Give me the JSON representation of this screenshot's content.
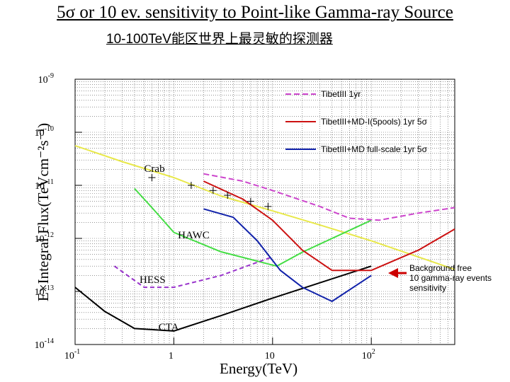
{
  "title": "5σ or 10 ev. sensitivity to Point-like Gamma-ray Source",
  "subtitle": "10-100TeV能区世界上最灵敏的探测器",
  "note": {
    "line1": "Background free",
    "line2": "10 gamma-ray events",
    "line3": "sensitivity",
    "arrow_color": "#cc0000"
  },
  "chart_data": {
    "type": "line",
    "xlabel": "Energy(TeV)",
    "ylabel": "E×Integral Flux(TeVcm⁻²s⁻¹)",
    "x_scale": "log",
    "y_scale": "log",
    "xlim": [
      0.1,
      700
    ],
    "ylim": [
      1e-14,
      1e-09
    ],
    "grid": true,
    "x_ticks": [
      {
        "value": 0.1,
        "base": "10",
        "exp": "-1"
      },
      {
        "value": 1,
        "base": "1",
        "exp": ""
      },
      {
        "value": 10,
        "base": "10",
        "exp": ""
      },
      {
        "value": 100,
        "base": "10",
        "exp": "2"
      }
    ],
    "y_ticks": [
      {
        "value": 1e-09,
        "base": "10",
        "exp": "-9"
      },
      {
        "value": 1e-10,
        "base": "10",
        "exp": "-10"
      },
      {
        "value": 1e-11,
        "base": "10",
        "exp": "-11"
      },
      {
        "value": 1e-12,
        "base": "10",
        "exp": "-12"
      },
      {
        "value": 1e-13,
        "base": "10",
        "exp": "-13"
      },
      {
        "value": 1e-14,
        "base": "10",
        "exp": "-14"
      }
    ],
    "legend_position": "top-right",
    "series": [
      {
        "name": "Crab",
        "color": "#e8e84a",
        "dash": "",
        "legend": false,
        "points": [
          [
            0.1,
            5.6e-11
          ],
          [
            0.3,
            2.8e-11
          ],
          [
            1,
            1.4e-11
          ],
          [
            3,
            6.3e-12
          ],
          [
            10,
            3.3e-12
          ],
          [
            30,
            1.8e-12
          ],
          [
            100,
            9e-13
          ],
          [
            700,
            2.6e-13
          ]
        ]
      },
      {
        "name": "HAWC",
        "color": "#44dd44",
        "dash": "",
        "legend": false,
        "points": [
          [
            0.4,
            8.7e-12
          ],
          [
            0.6,
            3.8e-12
          ],
          [
            1,
            1.3e-12
          ],
          [
            3,
            5.6e-13
          ],
          [
            11,
            3e-13
          ],
          [
            20,
            5.5e-13
          ],
          [
            100,
            2.2e-12
          ]
        ]
      },
      {
        "name": "HESS",
        "color": "#9933cc",
        "dash": "6,4",
        "legend": false,
        "points": [
          [
            0.25,
            3e-13
          ],
          [
            0.5,
            1.2e-13
          ],
          [
            1,
            1.2e-13
          ],
          [
            3,
            2e-13
          ],
          [
            10,
            4.5e-13
          ]
        ]
      },
      {
        "name": "CTA",
        "color": "#000000",
        "dash": "",
        "legend": false,
        "points": [
          [
            0.1,
            1.2e-13
          ],
          [
            0.2,
            4.2e-14
          ],
          [
            0.4,
            2e-14
          ],
          [
            1,
            1.8e-14
          ],
          [
            3,
            3.5e-14
          ],
          [
            10,
            7.5e-14
          ],
          [
            100,
            3e-13
          ]
        ]
      },
      {
        "name": "TibetIII 1yr",
        "color": "#cc44cc",
        "dash": "8,4",
        "legend": true,
        "points": [
          [
            2,
            1.65e-11
          ],
          [
            5,
            1.2e-11
          ],
          [
            10,
            8e-12
          ],
          [
            30,
            4e-12
          ],
          [
            60,
            2.4e-12
          ],
          [
            120,
            2.2e-12
          ],
          [
            300,
            3e-12
          ],
          [
            700,
            3.8e-12
          ]
        ]
      },
      {
        "name": "TibetIII+MD-I(5pools) 1yr 5σ",
        "color": "#cc1111",
        "dash": "",
        "legend": true,
        "points": [
          [
            2,
            1.2e-11
          ],
          [
            5,
            5.5e-12
          ],
          [
            10,
            2.2e-12
          ],
          [
            20,
            6e-13
          ],
          [
            40,
            2.5e-13
          ],
          [
            100,
            2.5e-13
          ],
          [
            300,
            6e-13
          ],
          [
            700,
            1.5e-12
          ]
        ]
      },
      {
        "name": "TibetIII+MD full-scale 1yr 5σ",
        "color": "#1122aa",
        "dash": "",
        "legend": true,
        "points": [
          [
            2,
            3.6e-12
          ],
          [
            4,
            2.5e-12
          ],
          [
            7,
            9e-13
          ],
          [
            12,
            2.5e-13
          ],
          [
            20,
            1.2e-13
          ],
          [
            40,
            6.5e-14
          ],
          [
            100,
            2e-13
          ]
        ]
      }
    ],
    "crab_label": "Crab",
    "crab_markers": [
      [
        0.6,
        1.4e-11
      ],
      [
        1.5,
        1e-11
      ],
      [
        2.5,
        8e-12
      ],
      [
        3.5,
        6.5e-12
      ],
      [
        6,
        5e-12
      ],
      [
        9,
        4e-12
      ]
    ],
    "annotations": [
      {
        "text": "Crab",
        "x": 0.5,
        "y": 1.8e-11
      },
      {
        "text": "HAWC",
        "x": 1.1,
        "y": 1e-12
      },
      {
        "text": "HESS",
        "x": 0.45,
        "y": 1.45e-13
      },
      {
        "text": "CTA",
        "x": 0.7,
        "y": 1.85e-14
      }
    ]
  }
}
